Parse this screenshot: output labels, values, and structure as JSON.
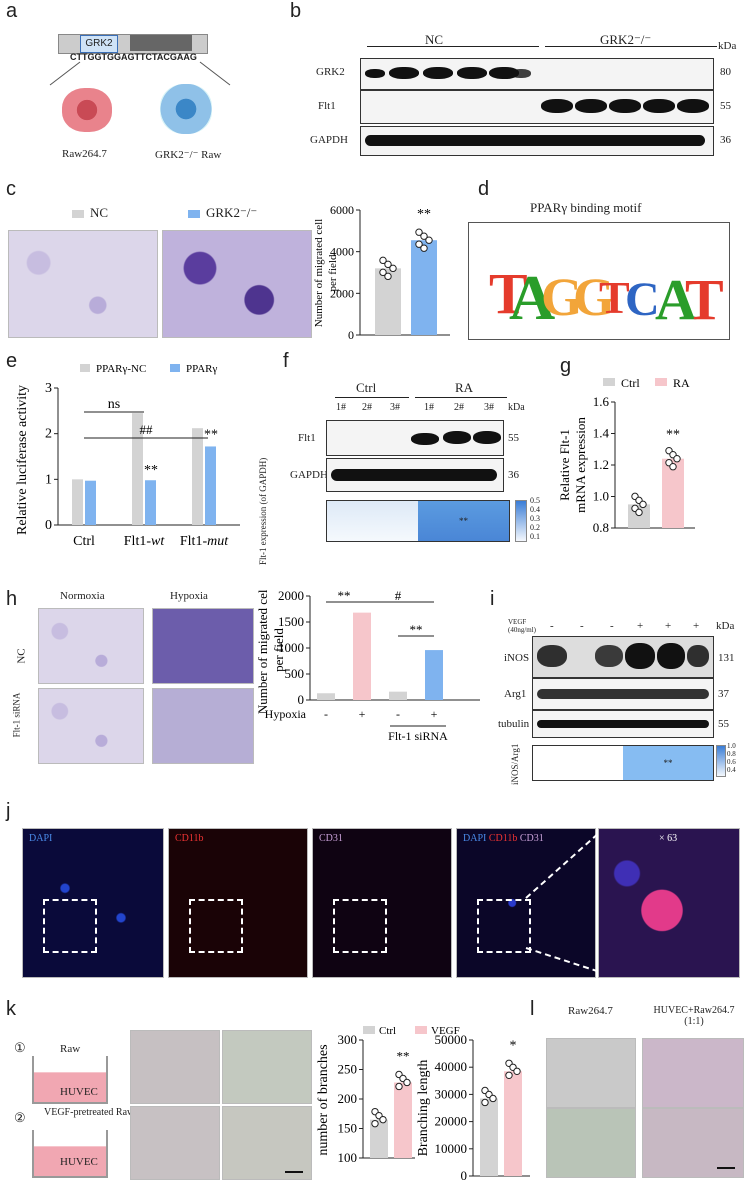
{
  "panels": {
    "a": "a",
    "b": "b",
    "c": "c",
    "d": "d",
    "e": "e",
    "f": "f",
    "g": "g",
    "h": "h",
    "i": "i",
    "j": "j",
    "k": "k",
    "l": "l"
  },
  "a": {
    "gene": "GRK2",
    "sequence": "CTTGGTGGAGTTCTACGAAG",
    "cell1": "Raw264.7",
    "cell2": "GRK2⁻/⁻ Raw"
  },
  "b": {
    "group1": "NC",
    "group2": "GRK2⁻/⁻",
    "kda": "kDa",
    "rows": [
      {
        "label": "GRK2",
        "kda": "80"
      },
      {
        "label": "Flt1",
        "kda": "55"
      },
      {
        "label": "GAPDH",
        "kda": "36"
      }
    ]
  },
  "c": {
    "legend": [
      "NC",
      "GRK2⁻/⁻"
    ],
    "ylabel": "Number of migrated cell per field",
    "sig": "**"
  },
  "d": {
    "title": "PPARγ binding motif"
  },
  "e": {
    "legend": [
      "PPARγ-NC",
      "PPARγ"
    ],
    "ylabel": "Relative luciferase activity",
    "ns": "ns",
    "hash": "##",
    "sig": "**"
  },
  "f": {
    "group1": "Ctrl",
    "group2": "RA",
    "lanes": [
      "1#",
      "2#",
      "3#",
      "1#",
      "2#",
      "3#"
    ],
    "kda": "kDa",
    "rows": [
      {
        "label": "Flt1",
        "kda": "55"
      },
      {
        "label": "GAPDH",
        "kda": "36"
      }
    ],
    "heat_label": "Flt-1 expression (of GAPDH)",
    "heat_sig": "**",
    "scale": [
      "0.5",
      "0.4",
      "0.3",
      "0.2",
      "0.1"
    ]
  },
  "g": {
    "legend": [
      "Ctrl",
      "RA"
    ],
    "ylabel": "Relative Flt-1 mRNA expression",
    "sig": "**"
  },
  "h": {
    "col1": "Normoxia",
    "col2": "Hypoxia",
    "row1": "NC",
    "row2": "Flt-1 siRNA",
    "ylabel": "Number of migrated cell per field",
    "xrow": "Hypoxia",
    "xsign": [
      "-",
      "+",
      "-",
      "+"
    ],
    "group": "Flt-1 siRNA",
    "sig": "**",
    "hash": "#"
  },
  "i": {
    "treat": "VEGF (40ng/ml)",
    "signs": [
      "-",
      "-",
      "-",
      "+",
      "+",
      "+"
    ],
    "kda": "kDa",
    "rows": [
      {
        "label": "iNOS",
        "kda": "131"
      },
      {
        "label": "Arg1",
        "kda": "37"
      },
      {
        "label": "tubulin",
        "kda": "55"
      }
    ],
    "heat_label": "iNOS/Arg1",
    "heat_sig": "**",
    "scale": [
      "1.0",
      "0.8",
      "0.6",
      "0.4"
    ]
  },
  "j": {
    "dapi": "DAPI",
    "cd11b": "CD11b",
    "cd31": "CD31",
    "zoom": "× 63"
  },
  "k": {
    "step1": "①",
    "step2": "②",
    "raw": "Raw",
    "vegf_raw": "VEGF-pretreated Raw",
    "huvec": "HUVEC",
    "legend": [
      "Ctrl",
      "VEGF"
    ],
    "ylabel1": "number of branches",
    "ylabel2": "Branching length",
    "sig1": "**",
    "sig2": "*"
  },
  "l": {
    "col1": "Raw264.7",
    "col2": "HUVEC+Raw264.7 (1:1)"
  },
  "colors": {
    "gray": "#d3d3d3",
    "blue": "#7fb3ef",
    "pink": "#f6c6cb"
  },
  "chart_data": [
    {
      "panel": "c",
      "type": "bar",
      "categories": [
        "NC",
        "GRK2-/-"
      ],
      "values": [
        3200,
        4550
      ],
      "ylim": [
        0,
        6000
      ],
      "yticks": [
        0,
        2000,
        4000,
        6000
      ],
      "ylabel": "Number of migrated cell per field"
    },
    {
      "panel": "e",
      "type": "bar",
      "categories": [
        "Ctrl",
        "Flt1-wt",
        "Flt1-mut"
      ],
      "series": [
        {
          "name": "PPARγ-NC",
          "values": [
            1.0,
            2.45,
            2.12
          ]
        },
        {
          "name": "PPARγ",
          "values": [
            0.97,
            0.98,
            1.72
          ]
        }
      ],
      "ylim": [
        0,
        3
      ],
      "yticks": [
        0,
        1,
        2,
        3
      ],
      "ylabel": "Relative luciferase activity"
    },
    {
      "panel": "g",
      "type": "bar",
      "categories": [
        "Ctrl",
        "RA"
      ],
      "values": [
        0.95,
        1.24
      ],
      "ylim": [
        0.8,
        1.6
      ],
      "yticks": [
        0.8,
        1.0,
        1.2,
        1.4,
        1.6
      ],
      "ylabel": "Relative Flt-1 mRNA expression"
    },
    {
      "panel": "h",
      "type": "bar",
      "categories": [
        "1",
        "2",
        "3",
        "4"
      ],
      "values": [
        130,
        1680,
        160,
        960
      ],
      "ylim": [
        0,
        2000
      ],
      "yticks": [
        0,
        500,
        1000,
        1500,
        2000
      ],
      "ylabel": "Number of migrated cell per field"
    },
    {
      "panel": "k1",
      "type": "bar",
      "categories": [
        "Ctrl",
        "VEGF"
      ],
      "values": [
        165,
        228
      ],
      "ylim": [
        100,
        300
      ],
      "yticks": [
        100,
        150,
        200,
        250,
        300
      ],
      "ylabel": "number of branches"
    },
    {
      "panel": "k2",
      "type": "bar",
      "categories": [
        "Ctrl",
        "VEGF"
      ],
      "values": [
        28500,
        38500
      ],
      "ylim": [
        0,
        50000
      ],
      "yticks": [
        0,
        10000,
        20000,
        30000,
        40000,
        50000
      ],
      "ylabel": "Branching length"
    }
  ]
}
